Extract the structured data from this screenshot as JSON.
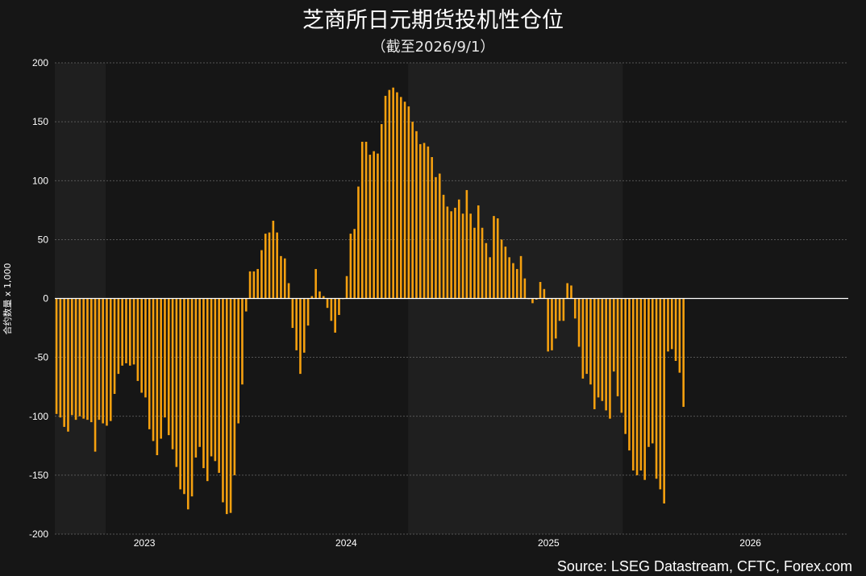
{
  "chart_data": {
    "type": "bar",
    "title": "芝商所日元期货投机性仓位",
    "subtitle": "（截至2026/9/1）",
    "ylabel": "合约数量 x 1,000",
    "xlabel": "",
    "source": "Source: LSEG Datastream, CFTC, Forex.com",
    "ylim": [
      -200,
      200
    ],
    "yticks": [
      -200,
      -150,
      -100,
      -50,
      0,
      50,
      100,
      150,
      200
    ],
    "xlim": [
      "2022-10-01",
      "2026-09-05"
    ],
    "xticks": [
      {
        "label": "2023",
        "date": "2023-01-01"
      },
      {
        "label": "2024",
        "date": "2024-01-01"
      },
      {
        "label": "2025",
        "date": "2025-01-01"
      },
      {
        "label": "2026",
        "date": "2026-01-01"
      }
    ],
    "grid": true,
    "colors": {
      "bar": "#f5a00f",
      "background": "#161616",
      "band": "#1f1f1f",
      "grid": "#6a6a6a",
      "zero_line": "#ffffff"
    },
    "shaded_ranges": [
      {
        "start": "2022-10-01",
        "end": "2023-01-01"
      },
      {
        "start": "2024-07-01",
        "end": "2025-07-24"
      }
    ],
    "series": [
      {
        "start_date": "2022-10-04",
        "frequency": "weekly",
        "values": [
          -98,
          -101,
          -109,
          -113,
          -99,
          -103,
          -100,
          -102,
          -103,
          -105,
          -130,
          -103,
          -106,
          -108,
          -104,
          -81,
          -64,
          -57,
          -55,
          -57,
          -56,
          -70,
          -80,
          -84,
          -111,
          -121,
          -133,
          -119,
          -101,
          -116,
          -128,
          -143,
          -162,
          -166,
          -179,
          -168,
          -135,
          -126,
          -144,
          -155,
          -134,
          -138,
          -148,
          -173,
          -183,
          -182,
          -150,
          -106,
          -73,
          -11,
          23,
          23,
          25,
          41,
          55,
          56,
          66,
          56,
          36,
          34,
          13,
          -25,
          -44,
          -64,
          -46,
          -23,
          2,
          25,
          6,
          2,
          -8,
          -19,
          -29,
          -14,
          0,
          19,
          55,
          59,
          95,
          133,
          133,
          122,
          125,
          123,
          148,
          172,
          177,
          179,
          175,
          171,
          167,
          163,
          150,
          142,
          131,
          132,
          129,
          120,
          103,
          106,
          88,
          78,
          74,
          77,
          84,
          72,
          92,
          72,
          60,
          79,
          60,
          47,
          35,
          70,
          68,
          50,
          44,
          35,
          30,
          25,
          36,
          17,
          0,
          -4,
          -1,
          14,
          8,
          -45,
          -44,
          -34,
          -19,
          -19,
          13,
          11,
          -17,
          -41,
          -68,
          -64,
          -73,
          -94,
          -84,
          -87,
          -95,
          -102,
          -62,
          -83,
          -97,
          -115,
          -129,
          -146,
          -150,
          -146,
          -154,
          -126,
          -123,
          -153,
          -162,
          -174,
          -45,
          -43,
          -53,
          -63,
          -92
        ]
      }
    ]
  }
}
